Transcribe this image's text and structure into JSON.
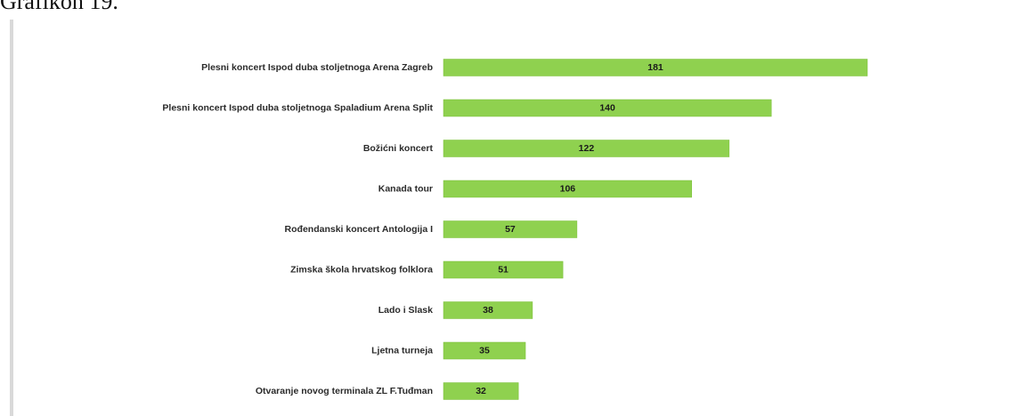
{
  "caption": "Grafikon 19.",
  "colors": {
    "bar": "#8fd14f",
    "bar_edge": "#7cc03c"
  },
  "chart_data": {
    "type": "bar",
    "orientation": "horizontal",
    "categories": [
      "Plesni koncert Ispod duba stoljetnoga Arena Zagreb",
      "Plesni koncert Ispod duba stoljetnoga Spaladium Arena Split",
      "Božićni koncert",
      "Kanada tour",
      "Rođendanski koncert Antologija I",
      "Zimska škola hrvatskog folklora",
      "Lado i Slask",
      "Ljetna turneja",
      "Otvaranje novog terminala ZL F.Tuđman"
    ],
    "values": [
      181,
      140,
      122,
      106,
      57,
      51,
      38,
      35,
      32
    ],
    "xlim": [
      0,
      181
    ],
    "grid": false,
    "legend": "none"
  }
}
